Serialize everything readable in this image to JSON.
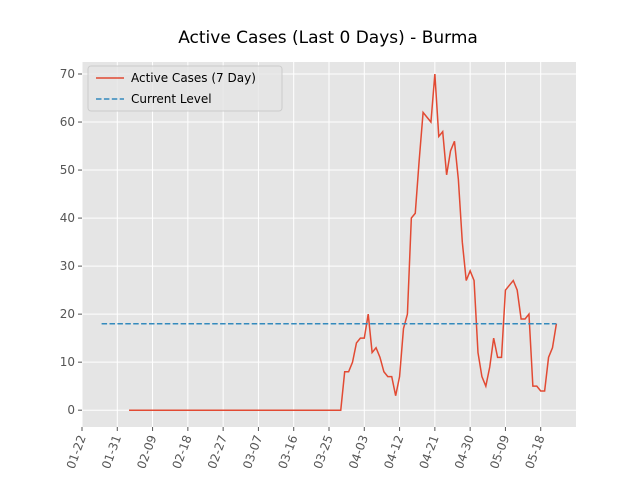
{
  "chart_data": {
    "type": "line",
    "title": "Active Cases (Last 0 Days) - Burma",
    "xlim": [
      0,
      126
    ],
    "ylim": [
      -3.5,
      72.5
    ],
    "xticks": [
      {
        "value": 0,
        "label": "01-22"
      },
      {
        "value": 9,
        "label": "01-31"
      },
      {
        "value": 18,
        "label": "02-09"
      },
      {
        "value": 27,
        "label": "02-18"
      },
      {
        "value": 36,
        "label": "02-27"
      },
      {
        "value": 45,
        "label": "03-07"
      },
      {
        "value": 54,
        "label": "03-16"
      },
      {
        "value": 63,
        "label": "03-25"
      },
      {
        "value": 72,
        "label": "04-03"
      },
      {
        "value": 81,
        "label": "04-12"
      },
      {
        "value": 90,
        "label": "04-21"
      },
      {
        "value": 99,
        "label": "04-30"
      },
      {
        "value": 108,
        "label": "05-09"
      },
      {
        "value": 117,
        "label": "05-18"
      }
    ],
    "yticks": [
      0,
      10,
      20,
      30,
      40,
      50,
      60,
      70
    ],
    "grid": true,
    "legend": "upper left",
    "series": [
      {
        "name": "Active Cases (7 Day)",
        "color": "#E24A33",
        "dash": false,
        "x": [
          12,
          13,
          14,
          15,
          16,
          17,
          18,
          19,
          20,
          21,
          22,
          23,
          24,
          25,
          26,
          27,
          28,
          29,
          30,
          31,
          32,
          33,
          34,
          35,
          36,
          37,
          38,
          39,
          40,
          41,
          42,
          43,
          44,
          45,
          46,
          47,
          48,
          49,
          50,
          51,
          52,
          53,
          54,
          55,
          56,
          57,
          58,
          59,
          60,
          61,
          62,
          63,
          64,
          65,
          66,
          67,
          68,
          69,
          70,
          71,
          72,
          73,
          74,
          75,
          76,
          77,
          78,
          79,
          80,
          81,
          82,
          83,
          84,
          85,
          86,
          87,
          88,
          89,
          90,
          91,
          92,
          93,
          94,
          95,
          96,
          97,
          98,
          99,
          100,
          101,
          102,
          103,
          104,
          105,
          106,
          107,
          108,
          109,
          110,
          111,
          112,
          113,
          114,
          115,
          116,
          117,
          118,
          119,
          120,
          121
        ],
        "values": [
          0,
          0,
          0,
          0,
          0,
          0,
          0,
          0,
          0,
          0,
          0,
          0,
          0,
          0,
          0,
          0,
          0,
          0,
          0,
          0,
          0,
          0,
          0,
          0,
          0,
          0,
          0,
          0,
          0,
          0,
          0,
          0,
          0,
          0,
          0,
          0,
          0,
          0,
          0,
          0,
          0,
          0,
          0,
          0,
          0,
          0,
          0,
          0,
          0,
          0,
          0,
          0,
          0,
          0,
          0,
          8,
          8,
          10,
          14,
          15,
          15,
          20,
          12,
          13,
          11,
          8,
          7,
          7,
          3,
          7,
          17,
          20,
          40,
          41,
          52,
          62,
          61,
          60,
          70,
          57,
          58,
          49,
          54,
          56,
          48,
          35,
          27,
          29,
          27,
          12,
          7,
          5,
          9,
          15,
          11,
          11,
          25,
          26,
          27,
          25,
          19,
          19,
          20,
          5,
          5,
          4,
          4,
          11,
          13,
          18
        ]
      },
      {
        "name": "Current Level",
        "color": "#348ABD",
        "dash": true,
        "x": [
          5,
          121
        ],
        "values": [
          18,
          18
        ]
      }
    ]
  }
}
